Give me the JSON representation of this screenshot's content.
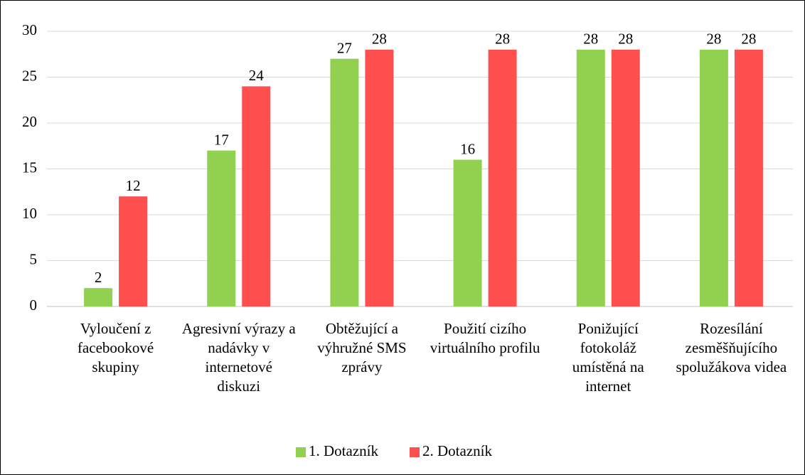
{
  "chart_data": {
    "type": "bar",
    "categories": [
      "Vyloučení z facebookové skupiny",
      "Agresivní výrazy a nadávky v internetové diskuzi",
      "Obtěžující a výhružné SMS zprávy",
      "Použití cizího virtuálního profilu",
      "Ponižující fotokoláž umístěná na internet",
      "Rozesílání zesměšňujícího spolužákova videa"
    ],
    "series": [
      {
        "name": "1. Dotazník",
        "color": "#92d050",
        "values": [
          2,
          17,
          27,
          16,
          28,
          28
        ]
      },
      {
        "name": "2. Dotazník",
        "color": "#ff5050",
        "values": [
          12,
          24,
          28,
          28,
          28,
          28
        ]
      }
    ],
    "ylim": [
      0,
      30
    ],
    "yticks": [
      0,
      5,
      10,
      15,
      20,
      25,
      30
    ],
    "grid": true,
    "legend": "bottom"
  }
}
